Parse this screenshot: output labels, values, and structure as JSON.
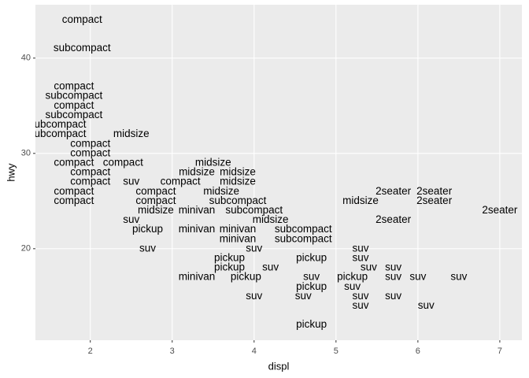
{
  "chart_data": {
    "type": "scatter",
    "marker": "text",
    "x_label": "displ",
    "y_label": "hwy",
    "xlim": [
      1.33,
      7.27
    ],
    "ylim": [
      10.4,
      45.6
    ],
    "xticks": [
      2,
      3,
      4,
      5,
      6,
      7
    ],
    "yticks": [
      20,
      30,
      40
    ],
    "grid": true,
    "x": [
      1.9,
      1.9,
      1.8,
      1.8,
      1.8,
      1.8,
      1.6,
      1.6,
      2.5,
      2.0,
      2.0,
      1.8,
      2.4,
      3.5,
      2.0,
      3.3,
      3.8,
      2.0,
      2.5,
      3.1,
      3.8,
      1.8,
      2.8,
      3.6,
      5.7,
      6.2,
      1.8,
      2.8,
      3.8,
      5.3,
      6.2,
      2.8,
      3.3,
      4.0,
      7.0,
      2.5,
      4.2,
      5.7,
      2.7,
      3.3,
      3.8,
      4.6,
      3.8,
      4.6,
      2.7,
      4.0,
      5.3,
      3.7,
      4.7,
      5.3,
      3.7,
      4.2,
      5.4,
      5.7,
      3.3,
      3.9,
      4.7,
      5.2,
      5.7,
      6.0,
      6.5,
      4.7,
      5.2,
      4.0,
      4.6,
      5.3,
      5.7,
      5.3,
      6.1,
      4.7
    ],
    "values": [
      44,
      41,
      37,
      36,
      35,
      34,
      33,
      32,
      32,
      31,
      30,
      29,
      29,
      29,
      28,
      28,
      28,
      27,
      27,
      27,
      27,
      26,
      26,
      26,
      26,
      26,
      25,
      25,
      25,
      25,
      25,
      24,
      24,
      24,
      24,
      23,
      23,
      23,
      22,
      22,
      22,
      22,
      21,
      21,
      20,
      20,
      20,
      19,
      19,
      19,
      18,
      18,
      18,
      18,
      17,
      17,
      17,
      17,
      17,
      17,
      17,
      16,
      16,
      15,
      15,
      15,
      15,
      14,
      14,
      12
    ],
    "labels": [
      "compact",
      "subcompact",
      "compact",
      "subcompact",
      "compact",
      "subcompact",
      "subcompact",
      "subcompact",
      "midsize",
      "compact",
      "compact",
      "compact",
      "compact",
      "midsize",
      "compact",
      "midsize",
      "midsize",
      "compact",
      "suv",
      "compact",
      "midsize",
      "compact",
      "compact",
      "midsize",
      "2seater",
      "2seater",
      "compact",
      "compact",
      "subcompact",
      "midsize",
      "2seater",
      "midsize",
      "minivan",
      "subcompact",
      "2seater",
      "suv",
      "midsize",
      "2seater",
      "pickup",
      "minivan",
      "minivan",
      "subcompact",
      "minivan",
      "subcompact",
      "suv",
      "suv",
      "suv",
      "pickup",
      "pickup",
      "suv",
      "pickup",
      "suv",
      "suv",
      "suv",
      "minivan",
      "pickup",
      "suv",
      "pickup",
      "suv",
      "suv",
      "suv",
      "pickup",
      "suv",
      "suv",
      "suv",
      "suv",
      "suv",
      "suv",
      "suv",
      "pickup"
    ]
  }
}
